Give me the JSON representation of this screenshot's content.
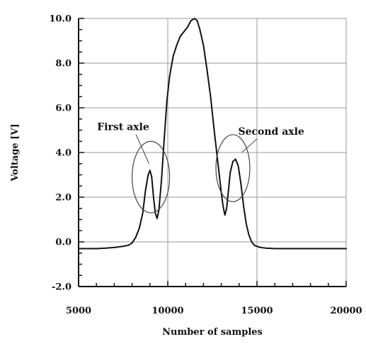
{
  "chart_data": {
    "type": "line",
    "title": "",
    "xlabel": "Number of samples",
    "ylabel": "Voltage [V]",
    "xlim": [
      5000,
      20000
    ],
    "ylim": [
      -2.0,
      10.0
    ],
    "x_ticks": [
      5000,
      10000,
      15000,
      20000
    ],
    "x_tick_labels": [
      "5000",
      "10000",
      "15000",
      "20000"
    ],
    "y_ticks": [
      -2.0,
      0.0,
      2.0,
      4.0,
      6.0,
      8.0,
      10.0
    ],
    "y_tick_labels": [
      "-2.0",
      "0.0",
      "2.0",
      "4.0",
      "6.0",
      "8.0",
      "10.0"
    ],
    "grid": true,
    "series": [
      {
        "color": "#111111",
        "x": [
          5000,
          5500,
          6000,
          6500,
          7000,
          7500,
          7800,
          8000,
          8200,
          8400,
          8600,
          8750,
          8900,
          9000,
          9100,
          9200,
          9300,
          9400,
          9500,
          9650,
          9800,
          9950,
          10100,
          10300,
          10500,
          10700,
          10900,
          11100,
          11300,
          11500,
          11650,
          11800,
          12000,
          12200,
          12400,
          12600,
          12800,
          13000,
          13100,
          13200,
          13300,
          13400,
          13500,
          13650,
          13800,
          13950,
          14100,
          14250,
          14400,
          14550,
          14700,
          14850,
          15000,
          15200,
          15500,
          16000,
          17000,
          18000,
          19000,
          20000
        ],
        "y": [
          -0.3,
          -0.3,
          -0.3,
          -0.28,
          -0.25,
          -0.2,
          -0.15,
          -0.05,
          0.2,
          0.6,
          1.3,
          2.3,
          3.0,
          3.2,
          2.9,
          2.0,
          1.3,
          1.05,
          1.4,
          2.8,
          4.6,
          6.3,
          7.4,
          8.3,
          8.8,
          9.2,
          9.4,
          9.6,
          9.9,
          10.0,
          9.9,
          9.5,
          8.8,
          7.7,
          6.5,
          5.0,
          3.6,
          2.2,
          1.6,
          1.2,
          1.5,
          2.3,
          3.1,
          3.6,
          3.7,
          3.4,
          2.6,
          1.6,
          0.8,
          0.3,
          0.0,
          -0.15,
          -0.2,
          -0.25,
          -0.28,
          -0.3,
          -0.3,
          -0.3,
          -0.3,
          -0.3
        ]
      }
    ],
    "annotations": [
      {
        "text": "First axle",
        "circle_center": [
          9050,
          2.9
        ],
        "circle_radius_x_units": 1050,
        "circle_radius_y_units": 1.6,
        "label_anchor": [
          7500,
          5.0
        ],
        "arrow_to": [
          8950,
          3.5
        ]
      },
      {
        "text": "Second axle",
        "circle_center": [
          13650,
          3.3
        ],
        "circle_radius_x_units": 950,
        "circle_radius_y_units": 1.5,
        "label_anchor": [
          15800,
          4.8
        ],
        "arrow_to": [
          14150,
          4.0
        ]
      }
    ]
  }
}
